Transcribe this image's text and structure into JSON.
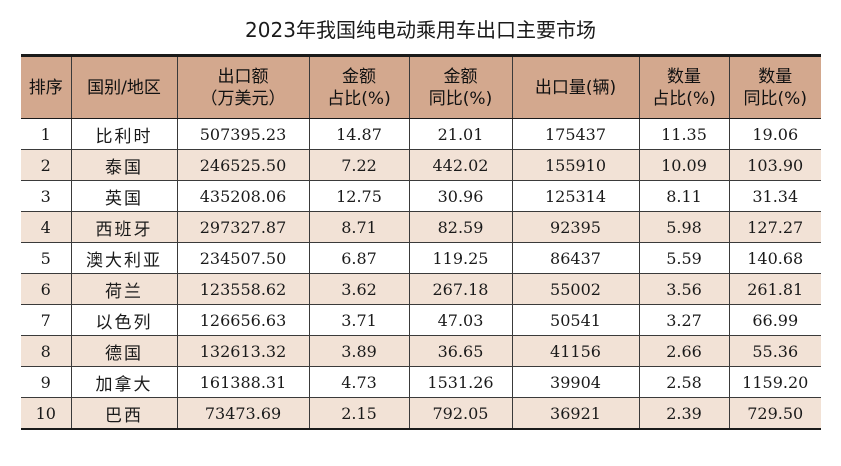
{
  "title": "2023年我国纯电动乘用车出口主要市场",
  "headers": [
    {
      "line1": "排序",
      "line2": ""
    },
    {
      "line1": "国别/地区",
      "line2": ""
    },
    {
      "line1": "出口额",
      "line2": "（万美元）"
    },
    {
      "line1": "金额",
      "line2": "占比(%)"
    },
    {
      "line1": "金额",
      "line2": "同比(%)"
    },
    {
      "line1": "出口量(辆)",
      "line2": ""
    },
    {
      "line1": "数量",
      "line2": "占比(%)"
    },
    {
      "line1": "数量",
      "line2": "同比(%)"
    }
  ],
  "rows": [
    {
      "rank": "1",
      "country": "比利时",
      "export_value": "507395.23",
      "value_share": "14.87",
      "value_yoy": "21.01",
      "volume": "175437",
      "volume_share": "11.35",
      "volume_yoy": "19.06"
    },
    {
      "rank": "2",
      "country": "泰国",
      "export_value": "246525.50",
      "value_share": "7.22",
      "value_yoy": "442.02",
      "volume": "155910",
      "volume_share": "10.09",
      "volume_yoy": "103.90"
    },
    {
      "rank": "3",
      "country": "英国",
      "export_value": "435208.06",
      "value_share": "12.75",
      "value_yoy": "30.96",
      "volume": "125314",
      "volume_share": "8.11",
      "volume_yoy": "31.34"
    },
    {
      "rank": "4",
      "country": "西班牙",
      "export_value": "297327.87",
      "value_share": "8.71",
      "value_yoy": "82.59",
      "volume": "92395",
      "volume_share": "5.98",
      "volume_yoy": "127.27"
    },
    {
      "rank": "5",
      "country": "澳大利亚",
      "export_value": "234507.50",
      "value_share": "6.87",
      "value_yoy": "119.25",
      "volume": "86437",
      "volume_share": "5.59",
      "volume_yoy": "140.68"
    },
    {
      "rank": "6",
      "country": "荷兰",
      "export_value": "123558.62",
      "value_share": "3.62",
      "value_yoy": "267.18",
      "volume": "55002",
      "volume_share": "3.56",
      "volume_yoy": "261.81"
    },
    {
      "rank": "7",
      "country": "以色列",
      "export_value": "126656.63",
      "value_share": "3.71",
      "value_yoy": "47.03",
      "volume": "50541",
      "volume_share": "3.27",
      "volume_yoy": "66.99"
    },
    {
      "rank": "8",
      "country": "德国",
      "export_value": "132613.32",
      "value_share": "3.89",
      "value_yoy": "36.65",
      "volume": "41156",
      "volume_share": "2.66",
      "volume_yoy": "55.36"
    },
    {
      "rank": "9",
      "country": "加拿大",
      "export_value": "161388.31",
      "value_share": "4.73",
      "value_yoy": "1531.26",
      "volume": "39904",
      "volume_share": "2.58",
      "volume_yoy": "1159.20"
    },
    {
      "rank": "10",
      "country": "巴西",
      "export_value": "73473.69",
      "value_share": "2.15",
      "value_yoy": "792.05",
      "volume": "36921",
      "volume_share": "2.39",
      "volume_yoy": "729.50"
    }
  ],
  "colors": {
    "header_bg": "#d3a88e",
    "alt_row_bg": "#f2e2d6",
    "border": "#1a1a1a"
  }
}
